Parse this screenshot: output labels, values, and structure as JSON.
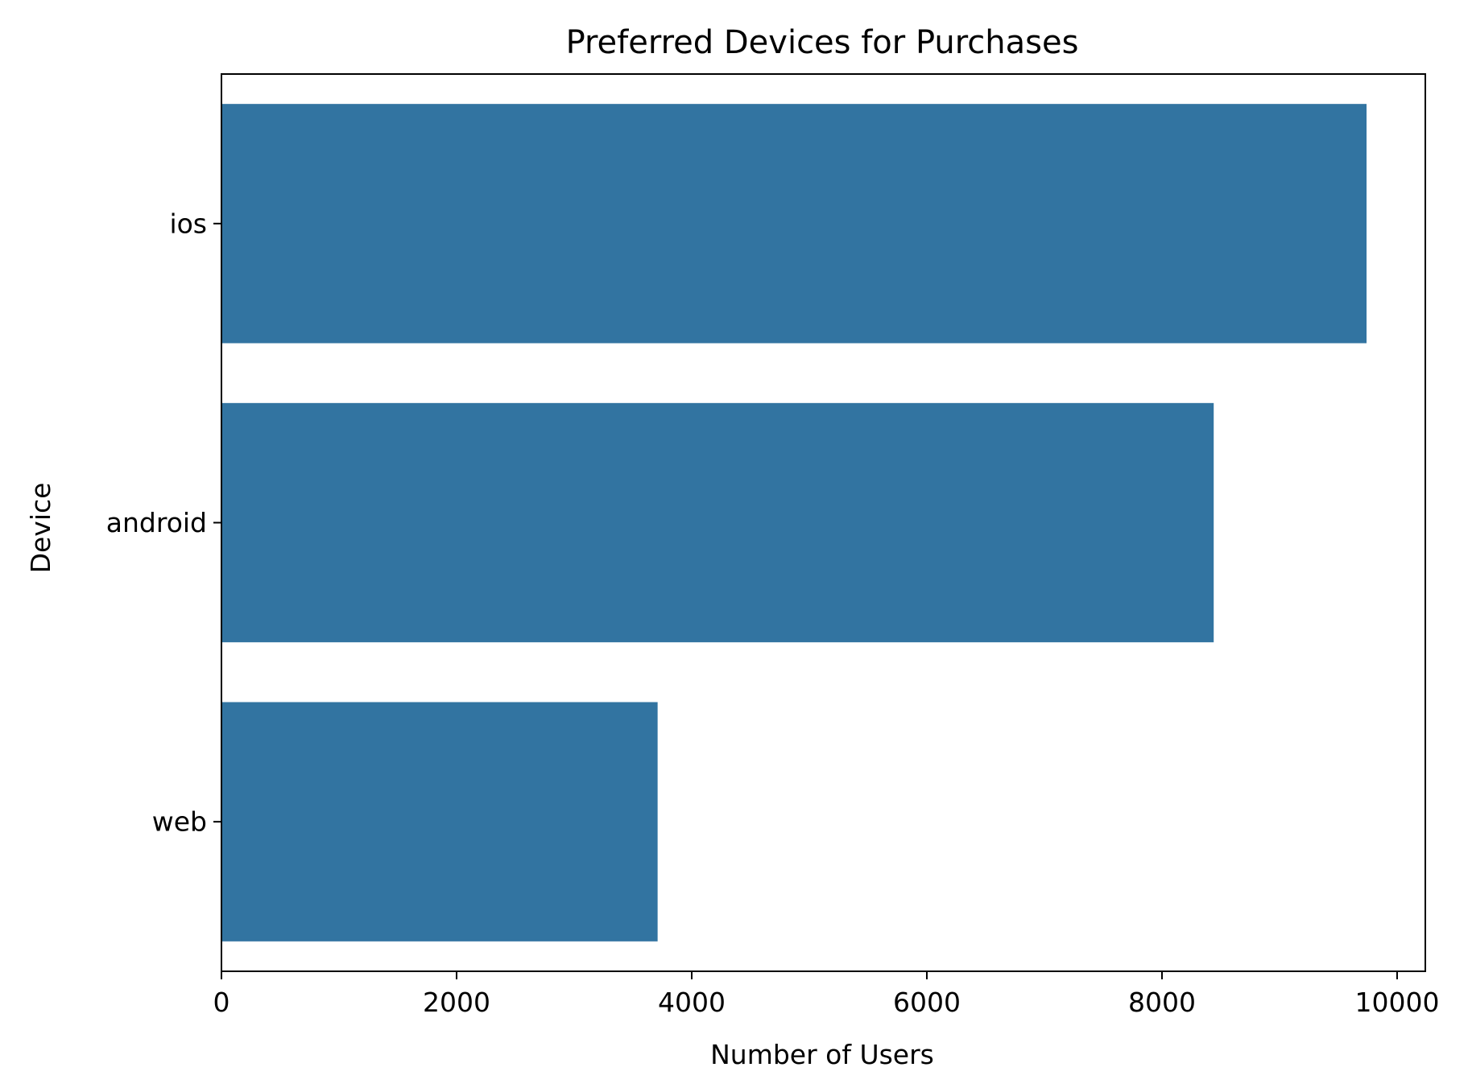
{
  "chart_data": {
    "type": "bar",
    "orientation": "horizontal",
    "title": "Preferred Devices for Purchases",
    "xlabel": "Number of Users",
    "ylabel": "Device",
    "categories": [
      "ios",
      "android",
      "web"
    ],
    "values": [
      9740,
      8440,
      3710
    ],
    "xlim": [
      0,
      10240
    ],
    "xticks": [
      0,
      2000,
      4000,
      6000,
      8000,
      10000
    ],
    "xtick_labels": [
      "0",
      "2000",
      "4000",
      "6000",
      "8000",
      "10000"
    ],
    "bar_color": "#3274a1",
    "grid": false,
    "legend": "none"
  }
}
